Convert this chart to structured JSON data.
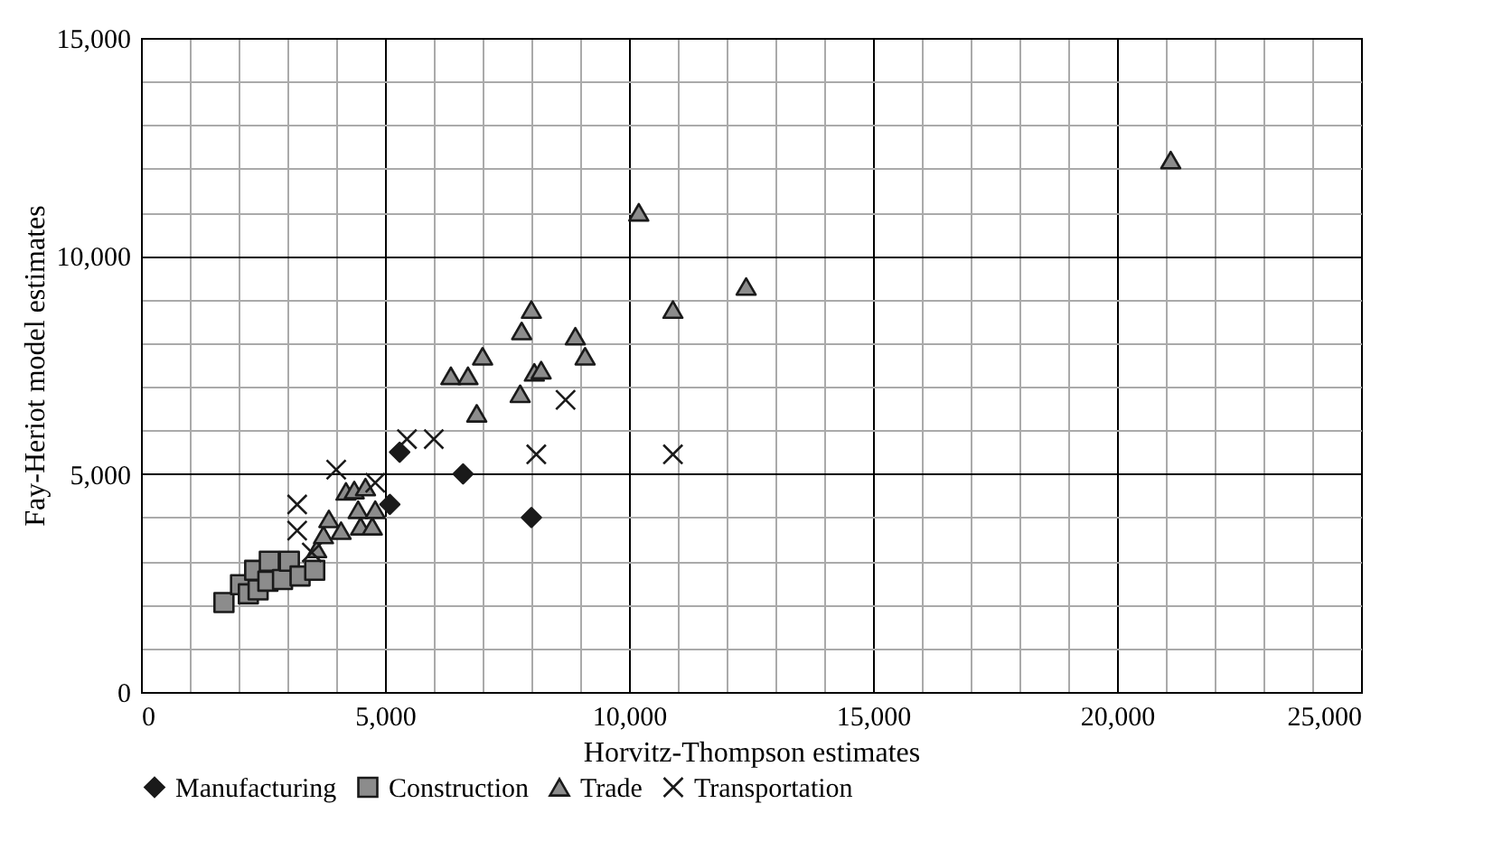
{
  "chart_data": {
    "type": "scatter",
    "xlabel": "Horvitz-Thompson estimates",
    "ylabel": "Fay-Heriot model estimates",
    "xlim": [
      0,
      25000
    ],
    "ylim": [
      0,
      15000
    ],
    "xticks": [
      0,
      {
        "value": 1000,
        "label": null
      },
      {
        "value": 2000,
        "label": null
      },
      {
        "value": 3000,
        "label": null
      },
      {
        "value": 4000,
        "label": null
      },
      {
        "value": 5000,
        "label": "5,000"
      },
      {
        "value": 6000,
        "label": null
      },
      {
        "value": 7000,
        "label": null
      },
      {
        "value": 8000,
        "label": null
      },
      {
        "value": 9000,
        "label": null
      },
      {
        "value": 10000,
        "label": "10,000"
      },
      {
        "value": 11000,
        "label": null
      },
      {
        "value": 12000,
        "label": null
      },
      {
        "value": 13000,
        "label": null
      },
      {
        "value": 14000,
        "label": null
      },
      {
        "value": 15000,
        "label": "15,000"
      },
      {
        "value": 16000,
        "label": null
      },
      {
        "value": 17000,
        "label": null
      },
      {
        "value": 18000,
        "label": null
      },
      {
        "value": 19000,
        "label": null
      },
      {
        "value": 20000,
        "label": "20,000"
      },
      {
        "value": 21000,
        "label": null
      },
      {
        "value": 22000,
        "label": null
      },
      {
        "value": 23000,
        "label": null
      },
      {
        "value": 24000,
        "label": null
      },
      {
        "value": 25000,
        "label": "25,000"
      }
    ],
    "yticks": [
      0,
      {
        "value": 1000,
        "label": null
      },
      {
        "value": 2000,
        "label": null
      },
      {
        "value": 3000,
        "label": null
      },
      {
        "value": 4000,
        "label": null
      },
      {
        "value": 5000,
        "label": "5,000"
      },
      {
        "value": 6000,
        "label": null
      },
      {
        "value": 7000,
        "label": null
      },
      {
        "value": 8000,
        "label": null
      },
      {
        "value": 9000,
        "label": null
      },
      {
        "value": 10000,
        "label": "10,000"
      },
      {
        "value": 11000,
        "label": null
      },
      {
        "value": 12000,
        "label": null
      },
      {
        "value": 13000,
        "label": null
      },
      {
        "value": 14000,
        "label": null
      },
      {
        "value": 15000,
        "label": "15,000"
      }
    ],
    "grid": true,
    "legend": "bottom",
    "series": [
      {
        "name": "Manufacturing",
        "color": "#1a1a1a",
        "marker": "diamond",
        "x": [
          5300,
          5100,
          6600,
          8000
        ],
        "values": [
          5500,
          4300,
          5000,
          4000
        ]
      },
      {
        "name": "Construction",
        "color": "#8c8c8c",
        "marker": "square",
        "x": [
          1700,
          2040,
          2200,
          2330,
          2400,
          2630,
          2600,
          2900,
          3040,
          3260,
          3560
        ],
        "values": [
          2050,
          2460,
          2250,
          2790,
          2340,
          3000,
          2540,
          2580,
          3000,
          2660,
          2790
        ]
      },
      {
        "name": "Trade",
        "color": "#8c8c8c",
        "marker": "triangle",
        "x": [
          3600,
          3740,
          3850,
          4100,
          4200,
          4370,
          4450,
          4500,
          4600,
          4740,
          4800,
          6350,
          6700,
          6880,
          7000,
          7770,
          7800,
          8000,
          8060,
          8200,
          8900,
          9100,
          10200,
          10900,
          12400,
          21100
        ],
        "values": [
          3280,
          3600,
          3970,
          3700,
          4600,
          4630,
          4180,
          3800,
          4700,
          3800,
          4180,
          7250,
          7250,
          6390,
          7700,
          6840,
          8280,
          8770,
          7330,
          7380,
          8160,
          7700,
          11000,
          8770,
          9300,
          12200
        ]
      },
      {
        "name": "Transportation",
        "color": "#1a1a1a",
        "marker": "cross",
        "x": [
          3200,
          3200,
          3500,
          4000,
          4800,
          5450,
          6000,
          8100,
          8700,
          10900
        ],
        "values": [
          4300,
          3700,
          3200,
          5100,
          4800,
          5800,
          5800,
          5450,
          6700,
          5450
        ]
      }
    ]
  }
}
